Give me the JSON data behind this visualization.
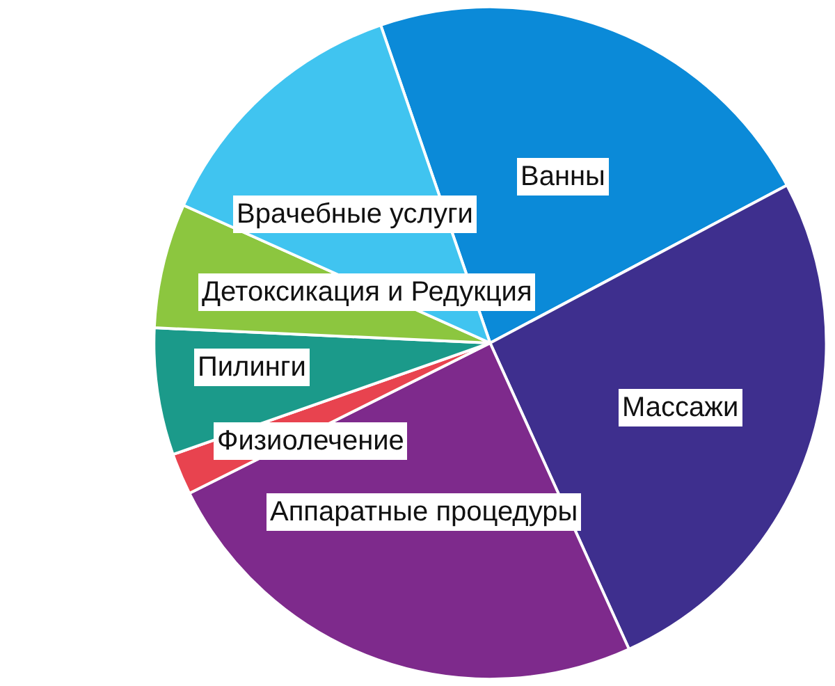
{
  "chart_data": {
    "type": "pie",
    "categories": [
      "Ванны",
      "Массажи",
      "Аппаратные процедуры",
      "Физиолечение",
      "Пилинги",
      "Детоксикация и Редукция",
      "Врачебные услуги"
    ],
    "values": [
      22.5,
      26.0,
      24.4,
      2.0,
      6.1,
      6.0,
      13.0
    ],
    "colors": [
      "#0b8ad8",
      "#3e2f8e",
      "#7e2a8c",
      "#e8434f",
      "#1b9a8a",
      "#8cc63f",
      "#40c4f0"
    ],
    "legend": false
  }
}
